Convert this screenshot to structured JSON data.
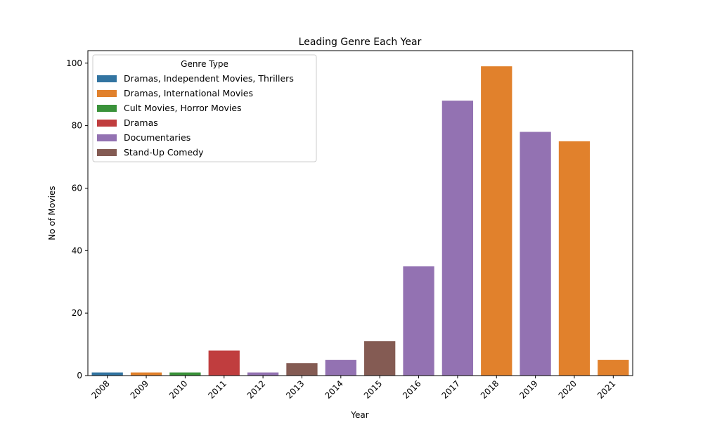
{
  "chart_data": {
    "type": "bar",
    "title": "Leading Genre Each Year",
    "xlabel": "Year",
    "ylabel": "No of Movies",
    "ylim": [
      0,
      104
    ],
    "yticks": [
      0,
      20,
      40,
      60,
      80,
      100
    ],
    "grid": false,
    "legend": {
      "title": "Genre Type",
      "placement": "top-left",
      "entries": [
        {
          "name": "Dramas, Independent Movies, Thrillers",
          "color": "#3274a1"
        },
        {
          "name": "Dramas, International Movies",
          "color": "#e1812c"
        },
        {
          "name": "Cult Movies, Horror Movies",
          "color": "#3a923a"
        },
        {
          "name": "Dramas",
          "color": "#c03d3e"
        },
        {
          "name": "Documentaries",
          "color": "#9372b2"
        },
        {
          "name": "Stand-Up Comedy",
          "color": "#845b53"
        }
      ]
    },
    "categories": [
      "2008",
      "2009",
      "2010",
      "2011",
      "2012",
      "2013",
      "2014",
      "2015",
      "2016",
      "2017",
      "2018",
      "2019",
      "2020",
      "2021"
    ],
    "values": [
      1,
      1,
      1,
      8,
      1,
      4,
      5,
      11,
      35,
      88,
      99,
      78,
      75,
      5
    ],
    "genres": [
      "Dramas, Independent Movies, Thrillers",
      "Dramas, International Movies",
      "Cult Movies, Horror Movies",
      "Dramas",
      "Documentaries",
      "Stand-Up Comedy",
      "Documentaries",
      "Stand-Up Comedy",
      "Documentaries",
      "Documentaries",
      "Dramas, International Movies",
      "Documentaries",
      "Dramas, International Movies",
      "Dramas, International Movies"
    ]
  }
}
